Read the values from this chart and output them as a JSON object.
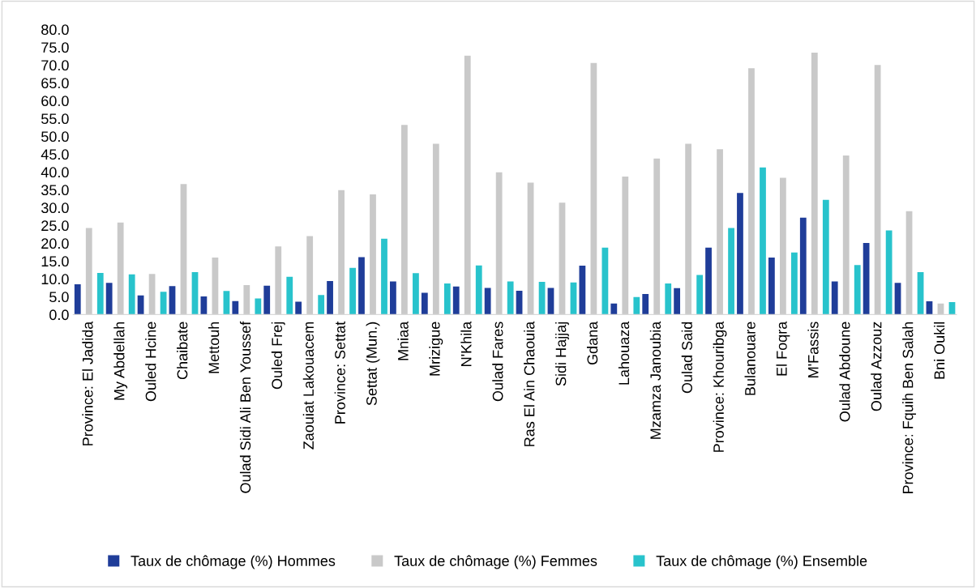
{
  "chart_data": {
    "type": "bar",
    "categories": [
      "Province: El Jadida",
      "My Abdellah",
      "Ouled Hcine",
      "Chaibate",
      "Mettouh",
      "Oulad Sidi Ali Ben Youssef",
      "Ouled Frej",
      "Zaouiat Lakouacem",
      "Province: Settat",
      "Settat (Mun.)",
      "Mniaa",
      "Mrizigue",
      "N'Khila",
      "Oulad Fares",
      "Ras El Ain Chaouia",
      "Sidi Hajjaj",
      "Gdana",
      "Lahouaza",
      "Mzamza Janoubia",
      "Oulad Said",
      "Province: Khouribga",
      "Bulanouare",
      "El Foqra",
      "M'Fassis",
      "Oulad Abdoune",
      "Oulad Azzouz",
      "Province: Fquih Ben Salah",
      "Bni Oukil"
    ],
    "series": [
      {
        "name": "Taux de chômage (%) Hommes",
        "color": "#1f3d99",
        "values": [
          8.5,
          8.9,
          5.4,
          8.0,
          5.1,
          3.8,
          8.1,
          3.6,
          9.4,
          16.1,
          9.3,
          6.1,
          7.9,
          7.5,
          6.7,
          7.5,
          13.7,
          3.1,
          5.8,
          7.4,
          18.8,
          34.1,
          16.0,
          27.2,
          9.3,
          20.1,
          8.9,
          3.7
        ]
      },
      {
        "name": "Taux de chômage (%) Femmes",
        "color": "#c9c9c9",
        "values": [
          24.3,
          25.8,
          11.4,
          36.6,
          16.0,
          8.3,
          19.1,
          22.0,
          34.9,
          33.7,
          53.2,
          47.9,
          72.6,
          39.9,
          37.0,
          31.4,
          70.6,
          38.7,
          43.8,
          47.9,
          46.4,
          69.1,
          38.4,
          73.5,
          44.6,
          70.0,
          29.0,
          3.1
        ]
      },
      {
        "name": "Taux de chômage (%) Ensemble",
        "color": "#28c3cc",
        "values": [
          11.7,
          11.3,
          6.4,
          11.9,
          6.6,
          4.5,
          10.6,
          5.5,
          13.1,
          21.3,
          11.6,
          8.7,
          13.8,
          9.3,
          9.2,
          9.0,
          18.8,
          4.9,
          8.7,
          11.1,
          24.3,
          41.3,
          17.4,
          32.2,
          13.9,
          23.6,
          11.9,
          3.5
        ]
      }
    ],
    "ylim": [
      0,
      80
    ],
    "yticks": [
      {
        "value": 0,
        "label": "0.0"
      },
      {
        "value": 5,
        "label": "5.0"
      },
      {
        "value": 10,
        "label": "10.0"
      },
      {
        "value": 15,
        "label": "15.0"
      },
      {
        "value": 20,
        "label": "20.0"
      },
      {
        "value": 25,
        "label": "25.0"
      },
      {
        "value": 30,
        "label": "30.0"
      },
      {
        "value": 35,
        "label": "35.0"
      },
      {
        "value": 40,
        "label": "40.0"
      },
      {
        "value": 45,
        "label": "45.0"
      },
      {
        "value": 50,
        "label": "50.0"
      },
      {
        "value": 55,
        "label": "55.0"
      },
      {
        "value": 60,
        "label": "60.0"
      },
      {
        "value": 65,
        "label": "65.0"
      },
      {
        "value": 70,
        "label": "70.0"
      },
      {
        "value": 75,
        "label": "75.0"
      },
      {
        "value": 80,
        "label": "80.0"
      }
    ],
    "grid": false,
    "legend": "bottom"
  }
}
